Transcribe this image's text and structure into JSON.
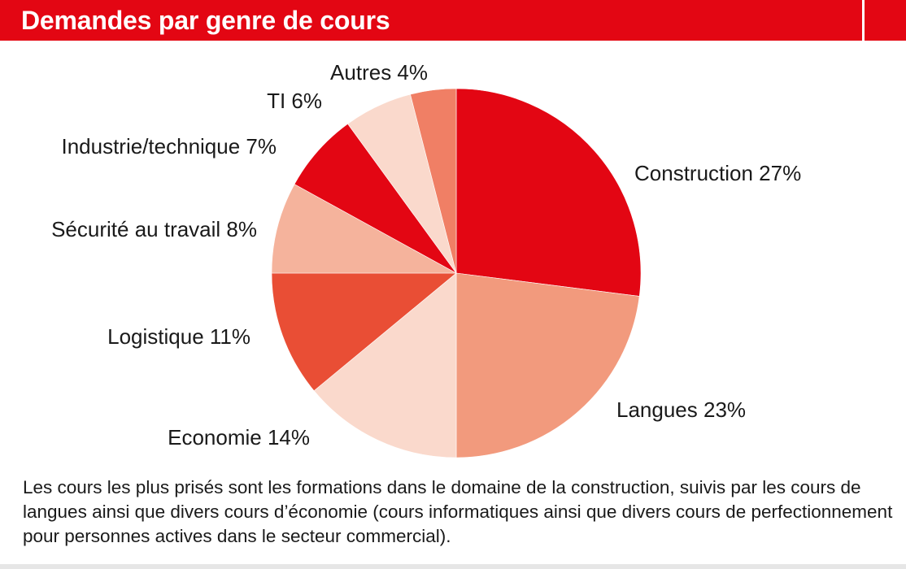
{
  "header": {
    "title": "Demandes par genre de cours"
  },
  "chart_data": {
    "type": "pie",
    "title": "Demandes par genre de cours",
    "unit": "%",
    "slices": [
      {
        "label": "Construction",
        "value": 27,
        "color": "#e30613"
      },
      {
        "label": "Langues",
        "value": 23,
        "color": "#f29a7d"
      },
      {
        "label": "Economie",
        "value": 14,
        "color": "#fad9cc"
      },
      {
        "label": "Logistique",
        "value": 11,
        "color": "#e94e35"
      },
      {
        "label": "Sécurité au travail",
        "value": 8,
        "color": "#f5b39c"
      },
      {
        "label": "Industrie/technique",
        "value": 7,
        "color": "#e30613"
      },
      {
        "label": "TI",
        "value": 6,
        "color": "#fad9cc"
      },
      {
        "label": "Autres",
        "value": 4,
        "color": "#f07f65"
      }
    ],
    "start_angle": "12 o'clock",
    "direction": "clockwise",
    "legend": "none"
  },
  "caption": {
    "text": "Les cours les plus prisés sont les formations dans le domaine de la construction, suivis par les cours de langues ainsi que divers cours d’économie (cours informatiques ainsi que divers cours de perfectionnement pour personnes actives dans le secteur commercial)."
  }
}
